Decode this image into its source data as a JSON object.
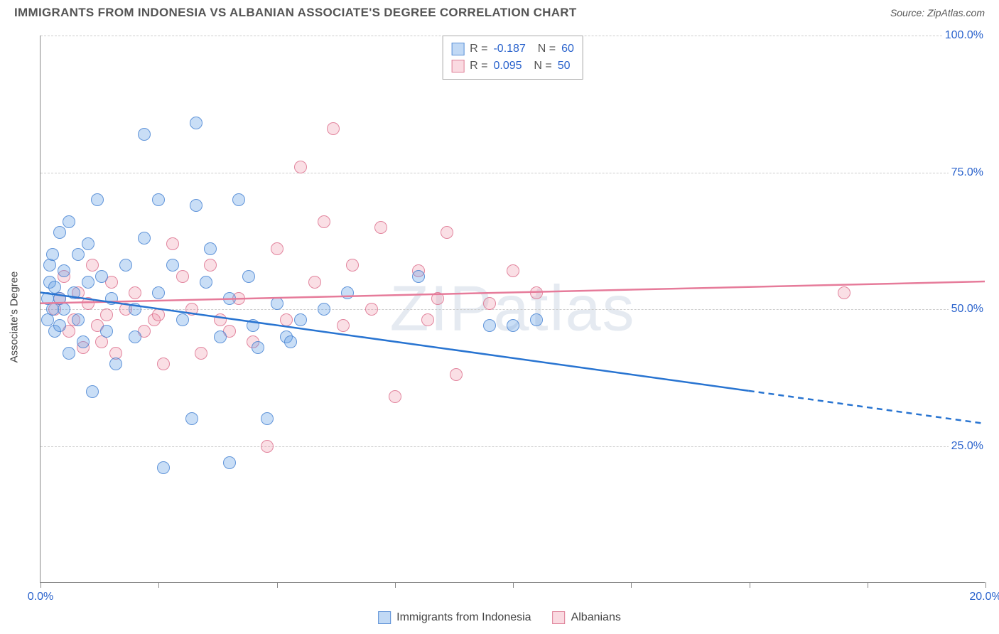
{
  "title": "IMMIGRANTS FROM INDONESIA VS ALBANIAN ASSOCIATE'S DEGREE CORRELATION CHART",
  "source": "Source: ZipAtlas.com",
  "watermark": "ZIPatlas",
  "y_axis_label": "Associate's Degree",
  "legend": {
    "series_a": {
      "label": "Immigrants from Indonesia",
      "fill": "rgba(100,160,230,0.4)",
      "stroke": "#5a8fd6"
    },
    "series_b": {
      "label": "Albanians",
      "fill": "rgba(240,150,170,0.35)",
      "stroke": "#de7f97"
    }
  },
  "stats": {
    "a": {
      "R": "-0.187",
      "N": "60"
    },
    "b": {
      "R": "0.095",
      "N": "50"
    }
  },
  "axes": {
    "xlim": [
      0,
      20
    ],
    "ylim": [
      0,
      100
    ],
    "y_ticks": [
      25,
      50,
      75,
      100
    ],
    "y_tick_labels": [
      "25.0%",
      "50.0%",
      "75.0%",
      "100.0%"
    ],
    "x_ticks": [
      0,
      2.5,
      5,
      7.5,
      10,
      12.5,
      15,
      17.5,
      20
    ],
    "x_tick_labels": {
      "0": "0.0%",
      "20": "20.0%"
    }
  },
  "trend_lines": {
    "a": {
      "color": "#2874d1",
      "width": 2.5,
      "solid": {
        "x1": 0,
        "y1": 53,
        "x2": 15,
        "y2": 35
      },
      "dashed": {
        "x1": 15,
        "y1": 35,
        "x2": 20,
        "y2": 29
      }
    },
    "b": {
      "color": "#e67b9a",
      "width": 2.5,
      "x1": 0,
      "y1": 51,
      "x2": 20,
      "y2": 55
    }
  },
  "marker_radius": 9,
  "series_a_points": [
    [
      0.15,
      52
    ],
    [
      0.15,
      48
    ],
    [
      0.2,
      55
    ],
    [
      0.2,
      58
    ],
    [
      0.25,
      60
    ],
    [
      0.25,
      50
    ],
    [
      0.3,
      46
    ],
    [
      0.3,
      54
    ],
    [
      0.4,
      64
    ],
    [
      0.4,
      52
    ],
    [
      0.4,
      47
    ],
    [
      0.5,
      57
    ],
    [
      0.5,
      50
    ],
    [
      0.6,
      66
    ],
    [
      0.6,
      42
    ],
    [
      0.7,
      53
    ],
    [
      0.8,
      60
    ],
    [
      0.8,
      48
    ],
    [
      0.9,
      44
    ],
    [
      1.0,
      62
    ],
    [
      1.0,
      55
    ],
    [
      1.1,
      35
    ],
    [
      1.2,
      70
    ],
    [
      1.3,
      56
    ],
    [
      1.4,
      46
    ],
    [
      1.5,
      52
    ],
    [
      1.6,
      40
    ],
    [
      1.8,
      58
    ],
    [
      2.0,
      50
    ],
    [
      2.0,
      45
    ],
    [
      2.2,
      82
    ],
    [
      2.2,
      63
    ],
    [
      2.5,
      70
    ],
    [
      2.5,
      53
    ],
    [
      2.6,
      21
    ],
    [
      2.8,
      58
    ],
    [
      3.0,
      48
    ],
    [
      3.2,
      30
    ],
    [
      3.3,
      69
    ],
    [
      3.3,
      84
    ],
    [
      3.5,
      55
    ],
    [
      3.6,
      61
    ],
    [
      3.8,
      45
    ],
    [
      4.0,
      52
    ],
    [
      4.0,
      22
    ],
    [
      4.2,
      70
    ],
    [
      4.4,
      56
    ],
    [
      4.5,
      47
    ],
    [
      4.6,
      43
    ],
    [
      4.8,
      30
    ],
    [
      5.0,
      51
    ],
    [
      5.2,
      45
    ],
    [
      5.3,
      44
    ],
    [
      5.5,
      48
    ],
    [
      6.0,
      50
    ],
    [
      6.5,
      53
    ],
    [
      8.0,
      56
    ],
    [
      9.5,
      47
    ],
    [
      10.0,
      47
    ],
    [
      10.5,
      48
    ]
  ],
  "series_b_points": [
    [
      0.3,
      50
    ],
    [
      0.4,
      52
    ],
    [
      0.5,
      56
    ],
    [
      0.6,
      46
    ],
    [
      0.7,
      48
    ],
    [
      0.8,
      53
    ],
    [
      0.9,
      43
    ],
    [
      1.0,
      51
    ],
    [
      1.1,
      58
    ],
    [
      1.2,
      47
    ],
    [
      1.3,
      44
    ],
    [
      1.4,
      49
    ],
    [
      1.5,
      55
    ],
    [
      1.6,
      42
    ],
    [
      1.8,
      50
    ],
    [
      2.0,
      53
    ],
    [
      2.2,
      46
    ],
    [
      2.4,
      48
    ],
    [
      2.5,
      49
    ],
    [
      2.6,
      40
    ],
    [
      2.8,
      62
    ],
    [
      3.0,
      56
    ],
    [
      3.2,
      50
    ],
    [
      3.4,
      42
    ],
    [
      3.6,
      58
    ],
    [
      3.8,
      48
    ],
    [
      4.0,
      46
    ],
    [
      4.2,
      52
    ],
    [
      4.5,
      44
    ],
    [
      4.8,
      25
    ],
    [
      5.0,
      61
    ],
    [
      5.2,
      48
    ],
    [
      5.5,
      76
    ],
    [
      5.8,
      55
    ],
    [
      6.0,
      66
    ],
    [
      6.2,
      83
    ],
    [
      6.4,
      47
    ],
    [
      6.6,
      58
    ],
    [
      7.0,
      50
    ],
    [
      7.2,
      65
    ],
    [
      7.5,
      34
    ],
    [
      8.0,
      57
    ],
    [
      8.2,
      48
    ],
    [
      8.4,
      52
    ],
    [
      8.6,
      64
    ],
    [
      8.8,
      38
    ],
    [
      9.5,
      51
    ],
    [
      10.0,
      57
    ],
    [
      10.5,
      53
    ],
    [
      17.0,
      53
    ]
  ]
}
